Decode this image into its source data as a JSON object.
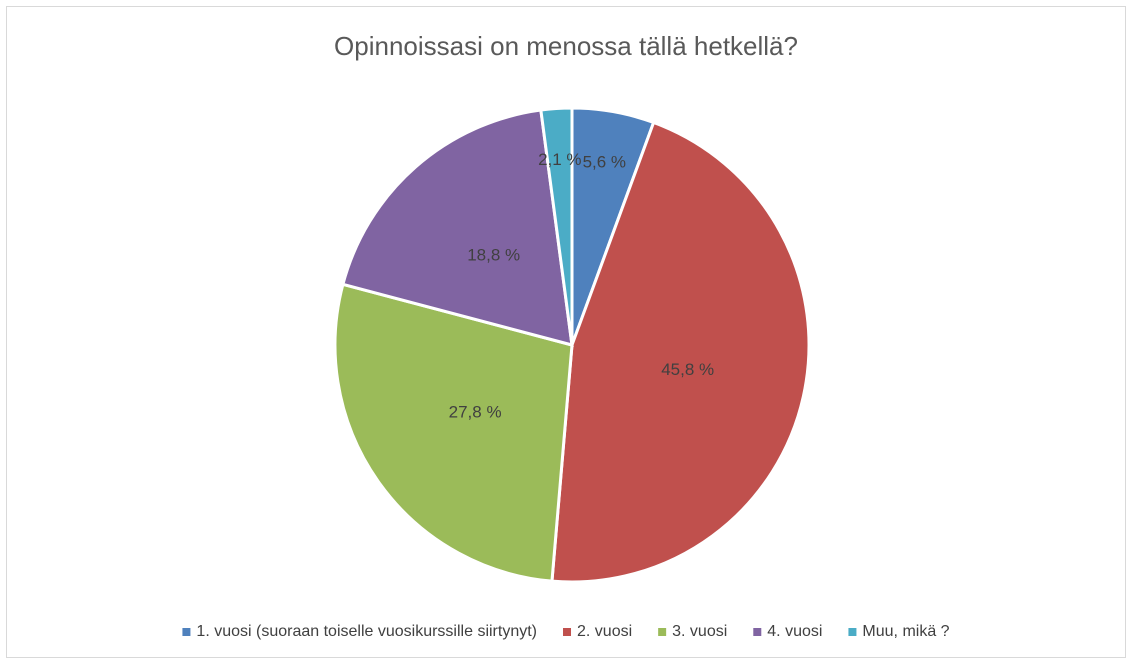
{
  "chart_data": {
    "type": "pie",
    "title": "Opinnoissasi on menossa tällä hetkellä?",
    "categories": [
      "1. vuosi (suoraan toiselle vuosikurssille siirtynyt)",
      "2. vuosi",
      "3. vuosi",
      "4. vuosi",
      "Muu, mikä ?"
    ],
    "values": [
      5.6,
      45.8,
      27.8,
      18.8,
      2.1
    ],
    "value_labels": [
      "5,6 %",
      "45,8 %",
      "27,8 %",
      "18,8 %",
      "2,1 %"
    ],
    "colors": [
      "#4f81bd",
      "#c0504d",
      "#9bbb59",
      "#8064a2",
      "#4bacc6"
    ],
    "legend": "bottom"
  }
}
